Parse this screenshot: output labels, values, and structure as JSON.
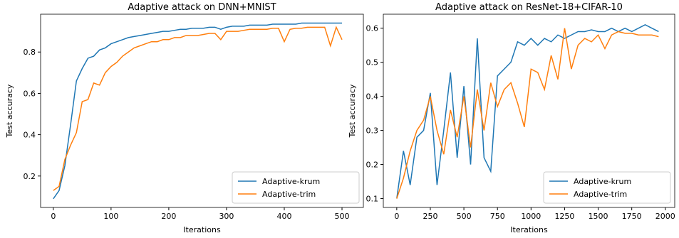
{
  "chart_data": [
    {
      "type": "line",
      "title": "Adaptive attack on DNN+MNIST",
      "x_label": "Iterations",
      "y_label": "Test accuracy",
      "x": [
        0,
        10,
        20,
        30,
        40,
        50,
        60,
        70,
        80,
        90,
        100,
        110,
        120,
        130,
        140,
        150,
        160,
        170,
        180,
        190,
        200,
        210,
        220,
        230,
        240,
        250,
        260,
        270,
        280,
        290,
        300,
        310,
        320,
        330,
        340,
        350,
        360,
        370,
        380,
        390,
        400,
        410,
        420,
        430,
        440,
        450,
        460,
        470,
        480,
        490,
        500
      ],
      "series": [
        {
          "name": "Adaptive-krum",
          "color": "#1f77b4",
          "values": [
            0.09,
            0.13,
            0.25,
            0.45,
            0.66,
            0.72,
            0.77,
            0.78,
            0.81,
            0.82,
            0.84,
            0.85,
            0.86,
            0.87,
            0.875,
            0.88,
            0.885,
            0.89,
            0.895,
            0.9,
            0.9,
            0.905,
            0.91,
            0.91,
            0.915,
            0.915,
            0.915,
            0.92,
            0.92,
            0.91,
            0.92,
            0.925,
            0.925,
            0.925,
            0.93,
            0.93,
            0.93,
            0.93,
            0.935,
            0.935,
            0.935,
            0.935,
            0.935,
            0.94,
            0.94,
            0.94,
            0.94,
            0.94,
            0.94,
            0.94,
            0.94
          ]
        },
        {
          "name": "Adaptive-trim",
          "color": "#ff7f0e",
          "values": [
            0.13,
            0.15,
            0.28,
            0.35,
            0.41,
            0.56,
            0.57,
            0.65,
            0.64,
            0.7,
            0.73,
            0.75,
            0.78,
            0.8,
            0.82,
            0.83,
            0.84,
            0.85,
            0.85,
            0.86,
            0.86,
            0.87,
            0.87,
            0.88,
            0.88,
            0.88,
            0.885,
            0.89,
            0.89,
            0.86,
            0.9,
            0.9,
            0.9,
            0.905,
            0.91,
            0.91,
            0.91,
            0.91,
            0.915,
            0.915,
            0.85,
            0.91,
            0.915,
            0.915,
            0.92,
            0.92,
            0.92,
            0.92,
            0.83,
            0.92,
            0.86
          ]
        }
      ],
      "xlim": [
        -22,
        537
      ],
      "ylim": [
        0.048,
        0.983
      ],
      "xticks": [
        0,
        100,
        200,
        300,
        400,
        500
      ],
      "yticks": [
        0.2,
        0.4,
        0.6,
        0.8
      ],
      "legend": "lower right"
    },
    {
      "type": "line",
      "title": "Adaptive attack on ResNet-18+CIFAR-10",
      "x_label": "Iterations",
      "y_label": "Test accuracy",
      "x": [
        0,
        50,
        100,
        150,
        200,
        250,
        300,
        350,
        400,
        450,
        500,
        550,
        600,
        650,
        700,
        750,
        800,
        850,
        900,
        950,
        1000,
        1050,
        1100,
        1150,
        1200,
        1250,
        1300,
        1350,
        1400,
        1450,
        1500,
        1550,
        1600,
        1650,
        1700,
        1750,
        1800,
        1850,
        1900,
        1950
      ],
      "series": [
        {
          "name": "Adaptive-krum",
          "color": "#1f77b4",
          "values": [
            0.1,
            0.24,
            0.14,
            0.28,
            0.3,
            0.41,
            0.14,
            0.3,
            0.47,
            0.22,
            0.43,
            0.2,
            0.57,
            0.22,
            0.18,
            0.46,
            0.48,
            0.5,
            0.56,
            0.55,
            0.57,
            0.55,
            0.57,
            0.56,
            0.58,
            0.57,
            0.58,
            0.59,
            0.59,
            0.595,
            0.59,
            0.59,
            0.6,
            0.59,
            0.6,
            0.59,
            0.6,
            0.61,
            0.6,
            0.59
          ]
        },
        {
          "name": "Adaptive-trim",
          "color": "#ff7f0e",
          "values": [
            0.1,
            0.16,
            0.24,
            0.3,
            0.33,
            0.4,
            0.3,
            0.23,
            0.36,
            0.28,
            0.4,
            0.25,
            0.42,
            0.3,
            0.44,
            0.37,
            0.42,
            0.44,
            0.38,
            0.31,
            0.48,
            0.47,
            0.42,
            0.52,
            0.45,
            0.6,
            0.48,
            0.55,
            0.57,
            0.56,
            0.58,
            0.54,
            0.58,
            0.59,
            0.585,
            0.585,
            0.58,
            0.58,
            0.58,
            0.575
          ]
        }
      ],
      "xlim": [
        -100,
        2070
      ],
      "ylim": [
        0.074,
        0.641
      ],
      "xticks": [
        0,
        250,
        500,
        750,
        1000,
        1250,
        1500,
        1750,
        2000
      ],
      "yticks": [
        0.1,
        0.2,
        0.3,
        0.4,
        0.5,
        0.6
      ],
      "legend": "lower right"
    }
  ]
}
